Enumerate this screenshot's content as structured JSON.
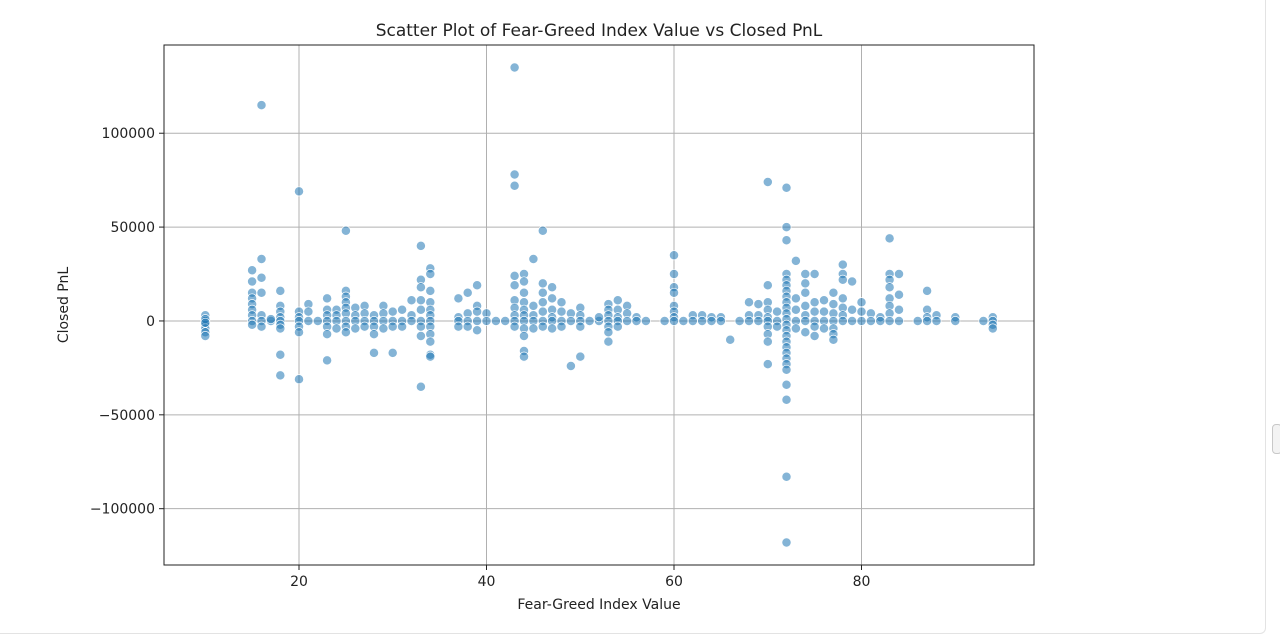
{
  "chart_data": {
    "type": "scatter",
    "title": "Scatter Plot of Fear-Greed Index Value vs Closed PnL",
    "xlabel": "Fear-Greed Index Value",
    "ylabel": "Closed PnL",
    "xlim": [
      5.6,
      98.4
    ],
    "ylim": [
      -130000,
      147000
    ],
    "xticks": [
      20,
      40,
      60,
      80
    ],
    "yticks": [
      -100000,
      -50000,
      0,
      50000,
      100000
    ],
    "ytick_labels": [
      "−100000",
      "−50000",
      "0",
      "50000",
      "100000"
    ],
    "grid": true,
    "legend": "none",
    "marker_color": "#1f77b4",
    "marker_alpha": 0.55,
    "points": [
      [
        10,
        3000
      ],
      [
        10,
        0
      ],
      [
        10,
        -2000
      ],
      [
        10,
        -4000
      ],
      [
        10,
        -6000
      ],
      [
        10,
        -8000
      ],
      [
        10,
        1000
      ],
      [
        10,
        -1000
      ],
      [
        15,
        27000
      ],
      [
        15,
        21000
      ],
      [
        15,
        15000
      ],
      [
        15,
        12000
      ],
      [
        15,
        9000
      ],
      [
        15,
        6000
      ],
      [
        15,
        3000
      ],
      [
        15,
        0
      ],
      [
        15,
        -2000
      ],
      [
        16,
        115000
      ],
      [
        16,
        33000
      ],
      [
        16,
        23000
      ],
      [
        16,
        15000
      ],
      [
        16,
        3000
      ],
      [
        16,
        0
      ],
      [
        16,
        -3000
      ],
      [
        17,
        0
      ],
      [
        17,
        1000
      ],
      [
        18,
        16000
      ],
      [
        18,
        8000
      ],
      [
        18,
        5000
      ],
      [
        18,
        2000
      ],
      [
        18,
        0
      ],
      [
        18,
        -2000
      ],
      [
        18,
        -4000
      ],
      [
        18,
        -18000
      ],
      [
        18,
        -29000
      ],
      [
        20,
        69000
      ],
      [
        20,
        5000
      ],
      [
        20,
        2000
      ],
      [
        20,
        0
      ],
      [
        20,
        -3000
      ],
      [
        20,
        -6000
      ],
      [
        20,
        -31000
      ],
      [
        21,
        9000
      ],
      [
        21,
        5000
      ],
      [
        21,
        0
      ],
      [
        22,
        0
      ],
      [
        23,
        12000
      ],
      [
        23,
        6000
      ],
      [
        23,
        3000
      ],
      [
        23,
        0
      ],
      [
        23,
        -3000
      ],
      [
        23,
        -7000
      ],
      [
        23,
        -21000
      ],
      [
        24,
        6000
      ],
      [
        24,
        3000
      ],
      [
        24,
        0
      ],
      [
        24,
        -4000
      ],
      [
        25,
        48000
      ],
      [
        25,
        16000
      ],
      [
        25,
        13000
      ],
      [
        25,
        10000
      ],
      [
        25,
        7000
      ],
      [
        25,
        4000
      ],
      [
        25,
        0
      ],
      [
        25,
        -3000
      ],
      [
        25,
        -6000
      ],
      [
        26,
        7000
      ],
      [
        26,
        3000
      ],
      [
        26,
        0
      ],
      [
        26,
        -4000
      ],
      [
        27,
        8000
      ],
      [
        27,
        4000
      ],
      [
        27,
        0
      ],
      [
        27,
        -3000
      ],
      [
        28,
        3000
      ],
      [
        28,
        0
      ],
      [
        28,
        -3000
      ],
      [
        28,
        -7000
      ],
      [
        28,
        -17000
      ],
      [
        29,
        8000
      ],
      [
        29,
        4000
      ],
      [
        29,
        0
      ],
      [
        29,
        -4000
      ],
      [
        30,
        5000
      ],
      [
        30,
        0
      ],
      [
        30,
        -3000
      ],
      [
        30,
        -17000
      ],
      [
        31,
        6000
      ],
      [
        31,
        0
      ],
      [
        31,
        -3000
      ],
      [
        32,
        11000
      ],
      [
        32,
        3000
      ],
      [
        32,
        0
      ],
      [
        33,
        40000
      ],
      [
        33,
        22000
      ],
      [
        33,
        18000
      ],
      [
        33,
        11000
      ],
      [
        33,
        6000
      ],
      [
        33,
        0
      ],
      [
        33,
        -3000
      ],
      [
        33,
        -8000
      ],
      [
        33,
        -35000
      ],
      [
        34,
        28000
      ],
      [
        34,
        25000
      ],
      [
        34,
        16000
      ],
      [
        34,
        10000
      ],
      [
        34,
        6000
      ],
      [
        34,
        3000
      ],
      [
        34,
        0
      ],
      [
        34,
        -3000
      ],
      [
        34,
        -7000
      ],
      [
        34,
        -11000
      ],
      [
        34,
        -18000
      ],
      [
        34,
        -19000
      ],
      [
        37,
        12000
      ],
      [
        37,
        2000
      ],
      [
        37,
        0
      ],
      [
        37,
        -3000
      ],
      [
        38,
        15000
      ],
      [
        38,
        4000
      ],
      [
        38,
        0
      ],
      [
        38,
        -3000
      ],
      [
        39,
        19000
      ],
      [
        39,
        8000
      ],
      [
        39,
        5000
      ],
      [
        39,
        0
      ],
      [
        39,
        -5000
      ],
      [
        40,
        4000
      ],
      [
        40,
        0
      ],
      [
        41,
        0
      ],
      [
        42,
        0
      ],
      [
        43,
        135000
      ],
      [
        43,
        78000
      ],
      [
        43,
        72000
      ],
      [
        43,
        24000
      ],
      [
        43,
        19000
      ],
      [
        43,
        11000
      ],
      [
        43,
        7000
      ],
      [
        43,
        3000
      ],
      [
        43,
        0
      ],
      [
        43,
        -3000
      ],
      [
        44,
        25000
      ],
      [
        44,
        21000
      ],
      [
        44,
        15000
      ],
      [
        44,
        10000
      ],
      [
        44,
        6000
      ],
      [
        44,
        3000
      ],
      [
        44,
        0
      ],
      [
        44,
        -4000
      ],
      [
        44,
        -8000
      ],
      [
        44,
        -16000
      ],
      [
        44,
        -19000
      ],
      [
        45,
        33000
      ],
      [
        45,
        8000
      ],
      [
        45,
        3000
      ],
      [
        45,
        0
      ],
      [
        45,
        -4000
      ],
      [
        46,
        48000
      ],
      [
        46,
        20000
      ],
      [
        46,
        15000
      ],
      [
        46,
        10000
      ],
      [
        46,
        5000
      ],
      [
        46,
        0
      ],
      [
        46,
        -3000
      ],
      [
        47,
        18000
      ],
      [
        47,
        12000
      ],
      [
        47,
        6000
      ],
      [
        47,
        2000
      ],
      [
        47,
        0
      ],
      [
        47,
        -4000
      ],
      [
        48,
        10000
      ],
      [
        48,
        5000
      ],
      [
        48,
        0
      ],
      [
        48,
        -3000
      ],
      [
        49,
        4000
      ],
      [
        49,
        0
      ],
      [
        49,
        -24000
      ],
      [
        50,
        7000
      ],
      [
        50,
        3000
      ],
      [
        50,
        0
      ],
      [
        50,
        -3000
      ],
      [
        50,
        -19000
      ],
      [
        51,
        0
      ],
      [
        52,
        0
      ],
      [
        52,
        2000
      ],
      [
        53,
        9000
      ],
      [
        53,
        6000
      ],
      [
        53,
        3000
      ],
      [
        53,
        0
      ],
      [
        53,
        -3000
      ],
      [
        53,
        -6000
      ],
      [
        53,
        -11000
      ],
      [
        54,
        11000
      ],
      [
        54,
        6000
      ],
      [
        54,
        2000
      ],
      [
        54,
        0
      ],
      [
        54,
        -3000
      ],
      [
        55,
        8000
      ],
      [
        55,
        4000
      ],
      [
        55,
        0
      ],
      [
        56,
        2000
      ],
      [
        56,
        0
      ],
      [
        57,
        0
      ],
      [
        59,
        0
      ],
      [
        60,
        35000
      ],
      [
        60,
        25000
      ],
      [
        60,
        18000
      ],
      [
        60,
        15000
      ],
      [
        60,
        8000
      ],
      [
        60,
        5000
      ],
      [
        60,
        2000
      ],
      [
        60,
        0
      ],
      [
        61,
        0
      ],
      [
        62,
        3000
      ],
      [
        62,
        0
      ],
      [
        63,
        3000
      ],
      [
        63,
        0
      ],
      [
        64,
        2000
      ],
      [
        64,
        0
      ],
      [
        65,
        2000
      ],
      [
        65,
        0
      ],
      [
        66,
        -10000
      ],
      [
        67,
        0
      ],
      [
        68,
        10000
      ],
      [
        68,
        3000
      ],
      [
        68,
        0
      ],
      [
        69,
        9000
      ],
      [
        69,
        3000
      ],
      [
        69,
        0
      ],
      [
        70,
        74000
      ],
      [
        70,
        19000
      ],
      [
        70,
        10000
      ],
      [
        70,
        6000
      ],
      [
        70,
        2000
      ],
      [
        70,
        0
      ],
      [
        70,
        -3000
      ],
      [
        70,
        -7000
      ],
      [
        70,
        -11000
      ],
      [
        70,
        -23000
      ],
      [
        71,
        5000
      ],
      [
        71,
        0
      ],
      [
        71,
        -3000
      ],
      [
        72,
        71000
      ],
      [
        72,
        50000
      ],
      [
        72,
        43000
      ],
      [
        72,
        25000
      ],
      [
        72,
        22000
      ],
      [
        72,
        19000
      ],
      [
        72,
        16000
      ],
      [
        72,
        13000
      ],
      [
        72,
        10000
      ],
      [
        72,
        7000
      ],
      [
        72,
        4000
      ],
      [
        72,
        1000
      ],
      [
        72,
        -2000
      ],
      [
        72,
        -5000
      ],
      [
        72,
        -8000
      ],
      [
        72,
        -11000
      ],
      [
        72,
        -14000
      ],
      [
        72,
        -17000
      ],
      [
        72,
        -20000
      ],
      [
        72,
        -23000
      ],
      [
        72,
        -26000
      ],
      [
        72,
        -34000
      ],
      [
        72,
        -42000
      ],
      [
        72,
        -83000
      ],
      [
        72,
        -118000
      ],
      [
        73,
        32000
      ],
      [
        73,
        12000
      ],
      [
        73,
        6000
      ],
      [
        73,
        0
      ],
      [
        73,
        -4000
      ],
      [
        74,
        25000
      ],
      [
        74,
        20000
      ],
      [
        74,
        15000
      ],
      [
        74,
        8000
      ],
      [
        74,
        3000
      ],
      [
        74,
        0
      ],
      [
        74,
        -6000
      ],
      [
        75,
        25000
      ],
      [
        75,
        10000
      ],
      [
        75,
        5000
      ],
      [
        75,
        0
      ],
      [
        75,
        -3000
      ],
      [
        75,
        -8000
      ],
      [
        76,
        11000
      ],
      [
        76,
        5000
      ],
      [
        76,
        0
      ],
      [
        76,
        -4000
      ],
      [
        77,
        15000
      ],
      [
        77,
        9000
      ],
      [
        77,
        4000
      ],
      [
        77,
        0
      ],
      [
        77,
        -4000
      ],
      [
        77,
        -7000
      ],
      [
        77,
        -10000
      ],
      [
        78,
        30000
      ],
      [
        78,
        25000
      ],
      [
        78,
        22000
      ],
      [
        78,
        12000
      ],
      [
        78,
        7000
      ],
      [
        78,
        3000
      ],
      [
        78,
        0
      ],
      [
        79,
        21000
      ],
      [
        79,
        6000
      ],
      [
        79,
        0
      ],
      [
        80,
        10000
      ],
      [
        80,
        5000
      ],
      [
        80,
        0
      ],
      [
        81,
        4000
      ],
      [
        81,
        0
      ],
      [
        82,
        2000
      ],
      [
        82,
        0
      ],
      [
        83,
        44000
      ],
      [
        83,
        25000
      ],
      [
        83,
        22000
      ],
      [
        83,
        18000
      ],
      [
        83,
        12000
      ],
      [
        83,
        8000
      ],
      [
        83,
        4000
      ],
      [
        83,
        0
      ],
      [
        84,
        25000
      ],
      [
        84,
        14000
      ],
      [
        84,
        6000
      ],
      [
        84,
        0
      ],
      [
        86,
        0
      ],
      [
        87,
        16000
      ],
      [
        87,
        6000
      ],
      [
        87,
        2000
      ],
      [
        87,
        0
      ],
      [
        88,
        3000
      ],
      [
        88,
        0
      ],
      [
        90,
        2000
      ],
      [
        90,
        0
      ],
      [
        93,
        0
      ],
      [
        94,
        2000
      ],
      [
        94,
        0
      ],
      [
        94,
        -2000
      ],
      [
        94,
        -4000
      ]
    ]
  }
}
